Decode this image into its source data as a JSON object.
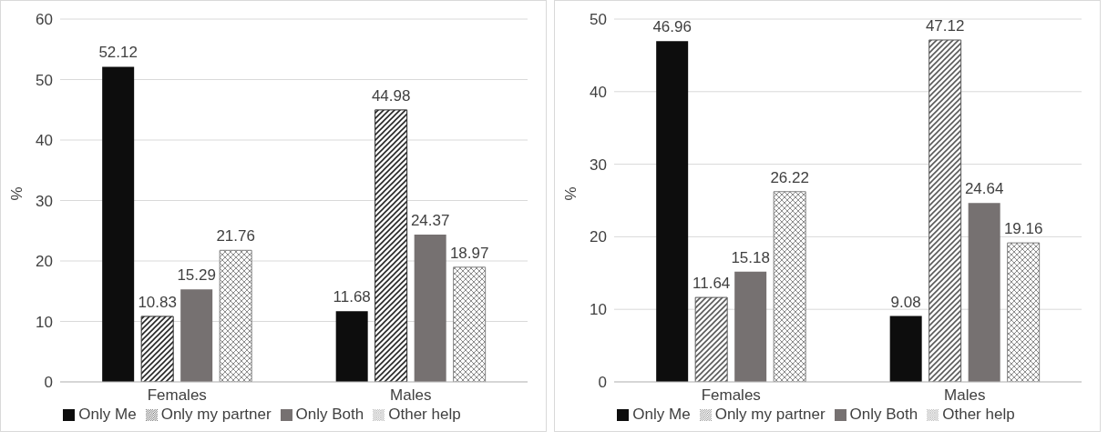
{
  "chart_data": [
    {
      "type": "bar",
      "ylabel": "%",
      "categories": [
        "Females",
        "Males"
      ],
      "series": [
        {
          "name": "Only Me",
          "color": "#0d0d0d",
          "values": [
            52.12,
            11.68
          ]
        },
        {
          "name": "Only my partner",
          "color": "#262626",
          "values": [
            10.83,
            44.98
          ]
        },
        {
          "name": "Only Both",
          "color": "#767171",
          "values": [
            15.29,
            24.37
          ]
        },
        {
          "name": "Other help",
          "color": "#7f7f7f",
          "values": [
            21.76,
            18.97
          ]
        }
      ],
      "ylim": [
        0,
        60
      ],
      "yticks": [
        0,
        10,
        20,
        30,
        40,
        50,
        60
      ],
      "grid": "y",
      "legend": "bottom",
      "data_labels": true
    },
    {
      "type": "bar",
      "ylabel": "%",
      "categories": [
        "Females",
        "Males"
      ],
      "series": [
        {
          "name": "Only Me",
          "color": "#0d0d0d",
          "values": [
            46.96,
            9.08
          ]
        },
        {
          "name": "Only my partner",
          "color": "#595959",
          "values": [
            11.64,
            47.12
          ]
        },
        {
          "name": "Only Both",
          "color": "#767171",
          "values": [
            15.18,
            24.64
          ]
        },
        {
          "name": "Other help",
          "color": "#7f7f7f",
          "values": [
            26.22,
            19.16
          ]
        }
      ],
      "ylim": [
        0,
        50
      ],
      "yticks": [
        0,
        10,
        20,
        30,
        40,
        50
      ],
      "grid": "y",
      "legend": "bottom",
      "data_labels": true
    }
  ]
}
